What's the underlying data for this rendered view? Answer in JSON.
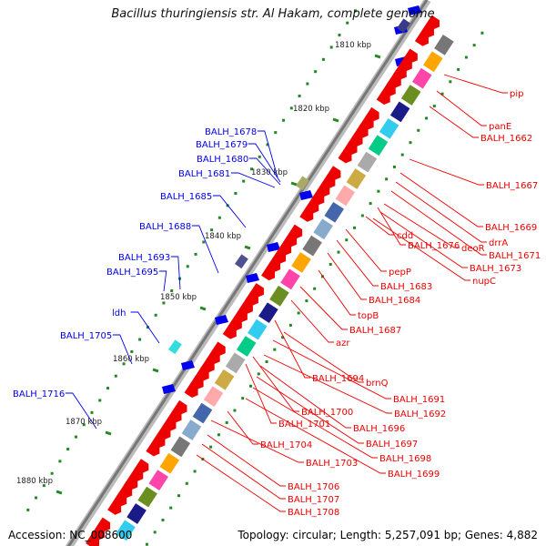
{
  "title": "Bacillus thuringiensis str. Al Hakam, complete genome",
  "accession": "Accession: NC_008600",
  "topology": "Topology: circular; Length: 5,257,091 bp; Genes: 4,882",
  "colors": {
    "forward": "#0000ee",
    "reverse": "#ee0000",
    "backbone": "#888888",
    "tick": "#228822",
    "leader_left": "#0000ee",
    "leader_right": "#ee0000"
  },
  "ruler": [
    "1810 kbp",
    "1820 kbp",
    "1830 kbp",
    "1840 kbp",
    "1850 kbp",
    "1860 kbp",
    "1870 kbp",
    "1880 kbp"
  ],
  "left_labels": [
    "BALH_1678",
    "BALH_1679",
    "BALH_1680",
    "BALH_1681",
    "BALH_1685",
    "BALH_1688",
    "BALH_1693",
    "BALH_1695",
    "ldh",
    "BALH_1705",
    "BALH_1716"
  ],
  "right_labels": [
    "pip",
    "panE",
    "BALH_1662",
    "BALH_1667",
    "BALH_1669",
    "drrA",
    "BALH_1671",
    "deoR",
    "BALH_1673",
    "nupC",
    "BALH_1676",
    "cdd",
    "pepP",
    "BALH_1683",
    "BALH_1684",
    "topB",
    "BALH_1687",
    "azr",
    "BALH_1694",
    "brnQ",
    "BALH_1691",
    "BALH_1692",
    "BALH_1700",
    "BALH_1701",
    "BALH_1696",
    "BALH_1697",
    "BALH_1698",
    "BALH_1699",
    "BALH_1704",
    "BALH_1703",
    "BALH_1706",
    "BALH_1707",
    "BALH_1708"
  ]
}
